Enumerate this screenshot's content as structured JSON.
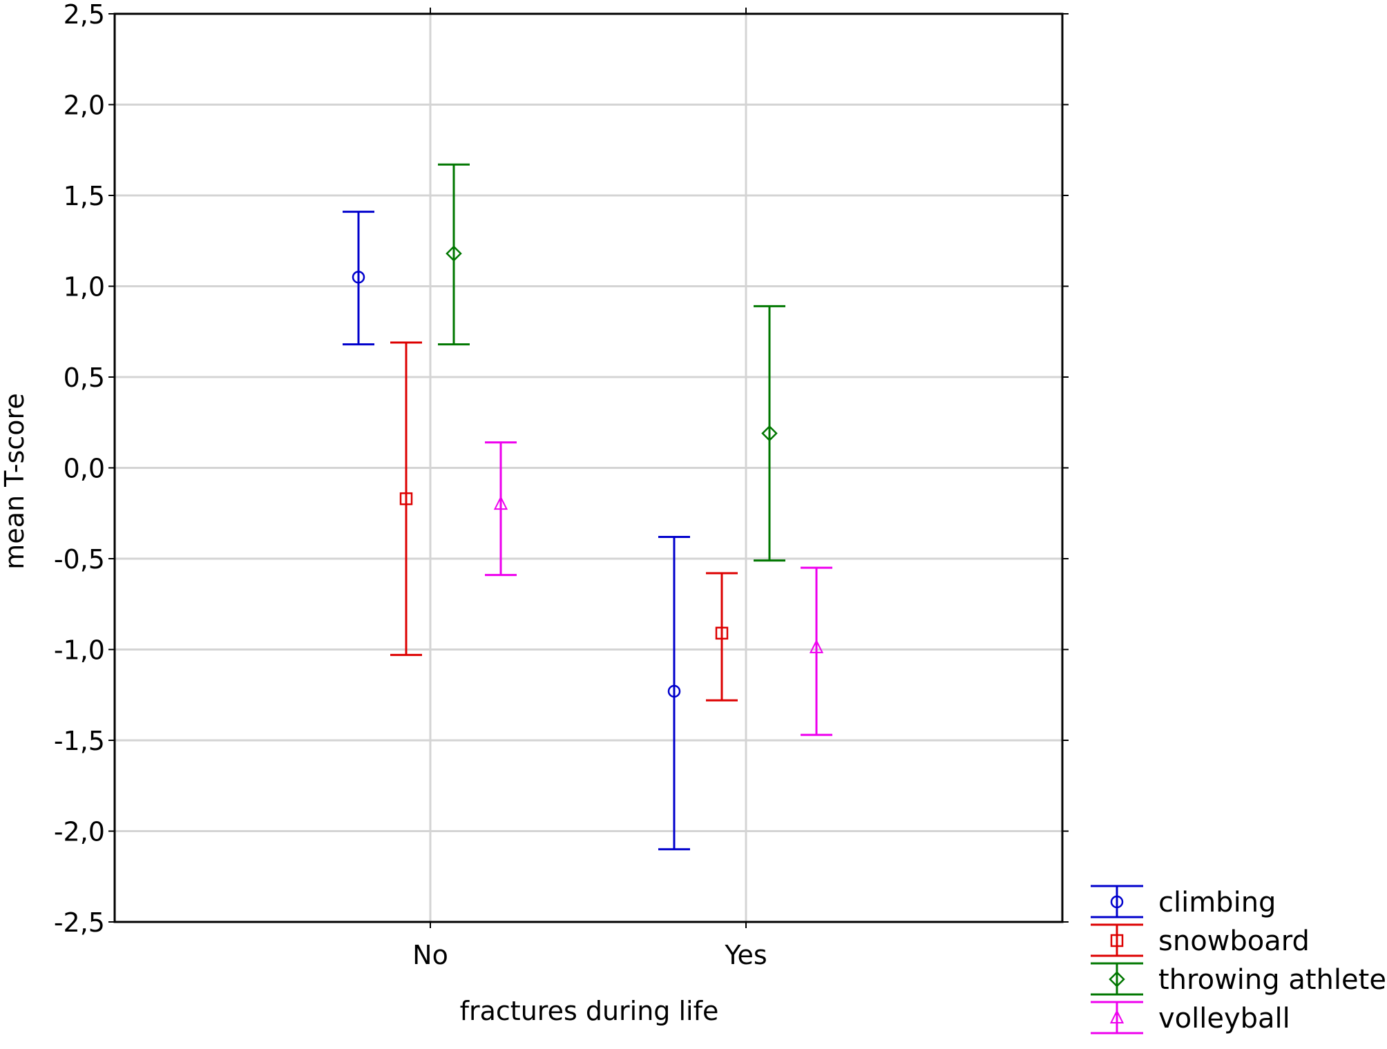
{
  "chart_data": {
    "type": "scatter",
    "subtype": "means-with-error-bars",
    "title": "",
    "xlabel": "fractures during life",
    "ylabel": "mean T-score",
    "categories": [
      "No",
      "Yes"
    ],
    "ylim": [
      -2.5,
      2.5
    ],
    "yticks": [
      2.5,
      2.0,
      1.5,
      1.0,
      0.5,
      0.0,
      -0.5,
      -1.0,
      -1.5,
      -2.0,
      -2.5
    ],
    "ytick_labels": [
      "2,5",
      "2,0",
      "1,5",
      "1,0",
      "0,5",
      "0,0",
      "-0,5",
      "-1,0",
      "-1,5",
      "-2,0",
      "-2,5"
    ],
    "grid": true,
    "legend_position": "bottom-right outside",
    "series": [
      {
        "name": "climbing",
        "color": "#0000cc",
        "marker": "circle",
        "mean": [
          1.05,
          -1.23
        ],
        "lower": [
          0.68,
          -2.1
        ],
        "upper": [
          1.41,
          -0.38
        ]
      },
      {
        "name": "snowboard",
        "color": "#dd0000",
        "marker": "square",
        "mean": [
          -0.17,
          -0.91
        ],
        "lower": [
          -1.03,
          -1.28
        ],
        "upper": [
          0.69,
          -0.58
        ]
      },
      {
        "name": "throwing athletes",
        "color": "#007700",
        "marker": "diamond",
        "mean": [
          1.18,
          0.19
        ],
        "lower": [
          0.68,
          -0.51
        ],
        "upper": [
          1.67,
          0.89
        ]
      },
      {
        "name": "volleyball",
        "color": "#ee00ee",
        "marker": "triangle",
        "mean": [
          -0.2,
          -0.99
        ],
        "lower": [
          -0.59,
          -1.47
        ],
        "upper": [
          0.14,
          -0.55
        ]
      }
    ]
  }
}
